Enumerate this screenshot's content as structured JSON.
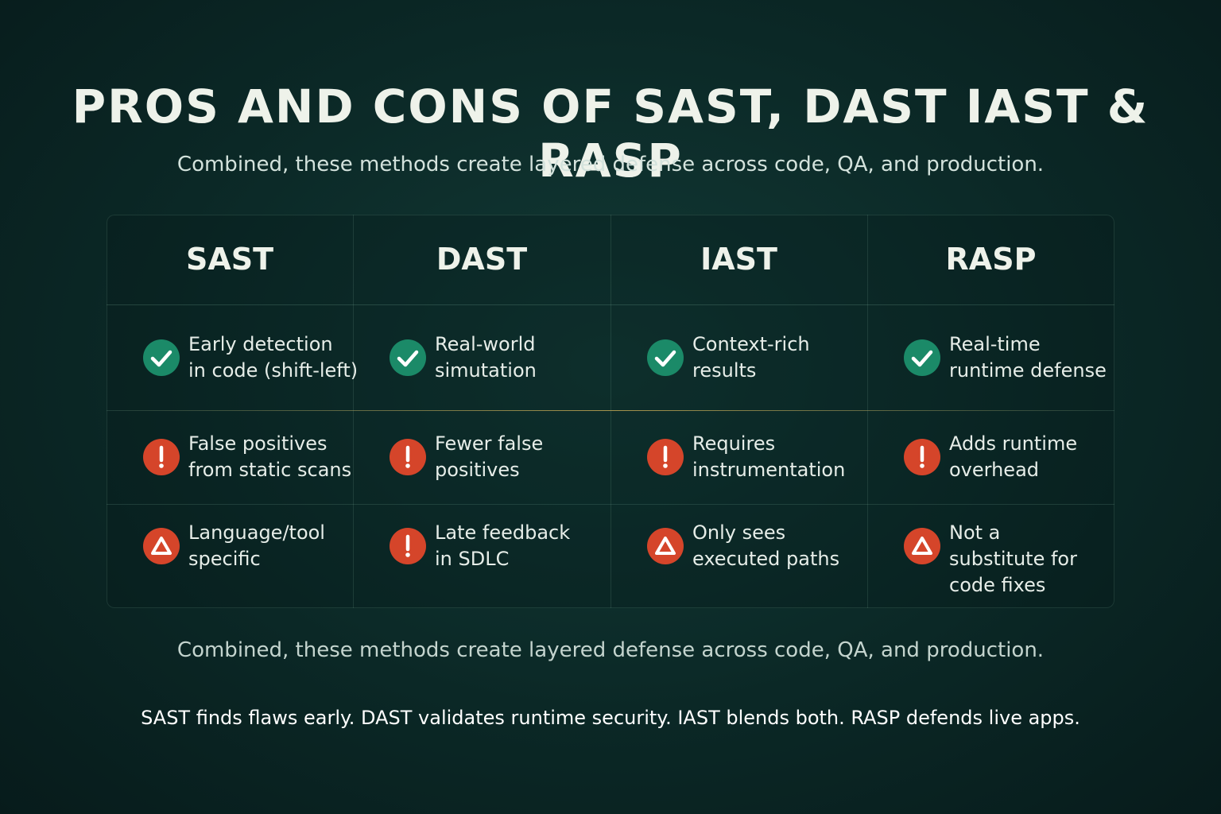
{
  "header": {
    "title": "PROS AND CONS OF SAST, DAST IAST & RASP",
    "subtitle": "Combined, these methods create layered defense across code, QA, and production."
  },
  "table": {
    "columns": [
      "SAST",
      "DAST",
      "IAST",
      "RASP"
    ],
    "rows": [
      [
        {
          "lines": [
            "Early detection",
            "in code (shift-left)"
          ]
        },
        {
          "lines": [
            "Real-world",
            "simutation"
          ]
        },
        {
          "lines": [
            "Context-rich",
            "results"
          ]
        },
        {
          "lines": [
            "Real-time",
            "runtime defense"
          ]
        }
      ],
      [
        {
          "lines": [
            "False positives",
            "from static scans"
          ]
        },
        {
          "lines": [
            "Fewer false",
            "positives"
          ]
        },
        {
          "lines": [
            "Requires",
            "instrumentation"
          ]
        },
        {
          "lines": [
            "Adds runtime",
            "overhead"
          ]
        }
      ],
      [
        {
          "lines": [
            "Language/tool",
            "specific"
          ]
        },
        {
          "lines": [
            "Late feedback",
            "in SDLC"
          ]
        },
        {
          "lines": [
            "Only sees",
            "executed paths"
          ]
        },
        {
          "lines": [
            "Not a",
            "substitute for",
            "code fixes"
          ]
        }
      ]
    ]
  },
  "footer": {
    "note": "Combined, these methods create layered defense across code, QA, and production.",
    "summary": "SAST finds flaws early. DAST validates runtime security. IAST blends both. RASP defends live apps."
  }
}
